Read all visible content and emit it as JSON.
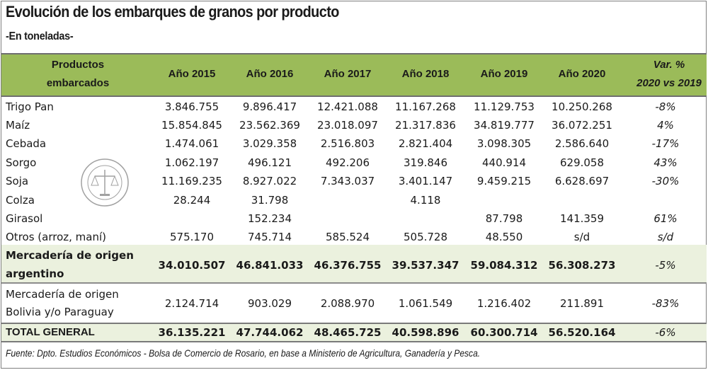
{
  "title": "Evolución de los embarques de granos por producto",
  "subtitle": "-En toneladas-",
  "header": {
    "product_col_line1": "Productos",
    "product_col_line2": "embarcados",
    "years": [
      "Año 2015",
      "Año 2016",
      "Año 2017",
      "Año 2018",
      "Año 2019",
      "Año 2020"
    ],
    "var_line1": "Var. %",
    "var_line2": "2020 vs 2019"
  },
  "rows": [
    {
      "label": "Trigo Pan",
      "values": [
        "3.846.755",
        "9.896.417",
        "12.421.088",
        "11.167.268",
        "11.129.753",
        "10.250.268"
      ],
      "var": "-8%"
    },
    {
      "label": "Maíz",
      "values": [
        "15.854.845",
        "23.562.369",
        "23.018.097",
        "21.317.836",
        "34.819.777",
        "36.072.251"
      ],
      "var": "4%"
    },
    {
      "label": "Cebada",
      "values": [
        "1.474.061",
        "3.029.358",
        "2.516.803",
        "2.821.404",
        "3.098.305",
        "2.586.640"
      ],
      "var": "-17%"
    },
    {
      "label": "Sorgo",
      "values": [
        "1.062.197",
        "496.121",
        "492.206",
        "319.846",
        "440.914",
        "629.058"
      ],
      "var": "43%"
    },
    {
      "label": "Soja",
      "values": [
        "11.169.235",
        "8.927.022",
        "7.343.037",
        "3.401.147",
        "9.459.215",
        "6.628.697"
      ],
      "var": "-30%"
    },
    {
      "label": "Colza",
      "values": [
        "28.244",
        "31.798",
        "",
        "4.118",
        "",
        ""
      ],
      "var": ""
    },
    {
      "label": "Girasol",
      "values": [
        "",
        "152.234",
        "",
        "",
        "87.798",
        "141.359"
      ],
      "var": "61%"
    },
    {
      "label": "Otros (arroz, maní)",
      "values": [
        "575.170",
        "745.714",
        "585.524",
        "505.728",
        "48.550",
        "s/d"
      ],
      "var": "s/d"
    }
  ],
  "argentine": {
    "label_line1": "Mercadería de origen",
    "label_line2": "argentino",
    "values": [
      "34.010.507",
      "46.841.033",
      "46.376.755",
      "39.537.347",
      "59.084.312",
      "56.308.273"
    ],
    "var": "-5%"
  },
  "bolivia": {
    "label_line1": "Mercadería de origen",
    "label_line2": "Bolivia y/o Paraguay",
    "values": [
      "2.124.714",
      "903.029",
      "2.088.970",
      "1.061.549",
      "1.216.402",
      "211.891"
    ],
    "var": "-83%"
  },
  "total": {
    "label": "TOTAL GENERAL",
    "values": [
      "36.135.221",
      "47.744.062",
      "48.465.725",
      "40.598.896",
      "60.300.714",
      "56.520.164"
    ],
    "var": "-6%"
  },
  "footer": "Fuente: Dpto. Estudios Económicos - Bolsa de Comercio de Rosario, en base a Ministerio de Agricultura, Ganadería y Pesca.",
  "colors": {
    "header_green": "#9bbb59",
    "band_light_green": "#ebf1de"
  }
}
